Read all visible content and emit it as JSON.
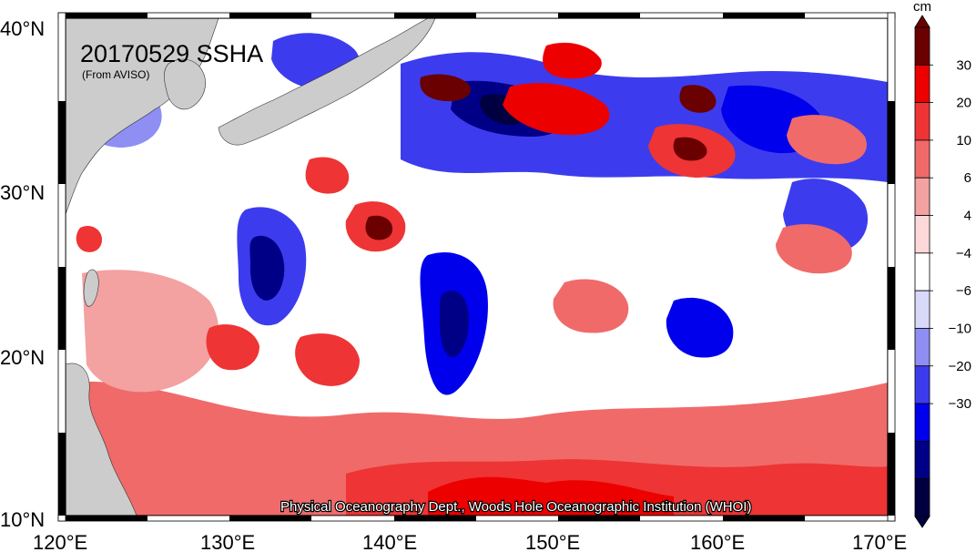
{
  "title": "20170529 SSHA",
  "source": "(From AVISO)",
  "credit": "Physical Oceanography Dept., Woods Hole Oceanographic Institution (WHOI)",
  "map": {
    "lon_labels": [
      "120°E",
      "130°E",
      "140°E",
      "150°E",
      "160°E",
      "170°E"
    ],
    "lat_labels": [
      "40°N",
      "30°N",
      "20°N",
      "10°N"
    ],
    "land_color": "#cccccc",
    "water_color": "#ffffff"
  },
  "colorbar": {
    "unit": "cm",
    "labels": [
      "30",
      "20",
      "10",
      "6",
      "4",
      "−4",
      "−6",
      "−10",
      "−20",
      "−30"
    ],
    "colors": [
      "#6b0000",
      "#ed0000",
      "#ee3434",
      "#f06a6a",
      "#f3a1a1",
      "#fdd8d8",
      "#ffffff",
      "#d8d8f8",
      "#8e8ef3",
      "#3c3cee",
      "#0000ed",
      "#000087",
      "#000040"
    ]
  },
  "chart_data": {
    "type": "heatmap",
    "variable": "SSHA",
    "unit": "cm",
    "lon_range": [
      120,
      170
    ],
    "lat_range": [
      10,
      40
    ],
    "levels": [
      -30,
      -20,
      -10,
      -6,
      -4,
      4,
      6,
      10,
      20,
      30
    ]
  }
}
